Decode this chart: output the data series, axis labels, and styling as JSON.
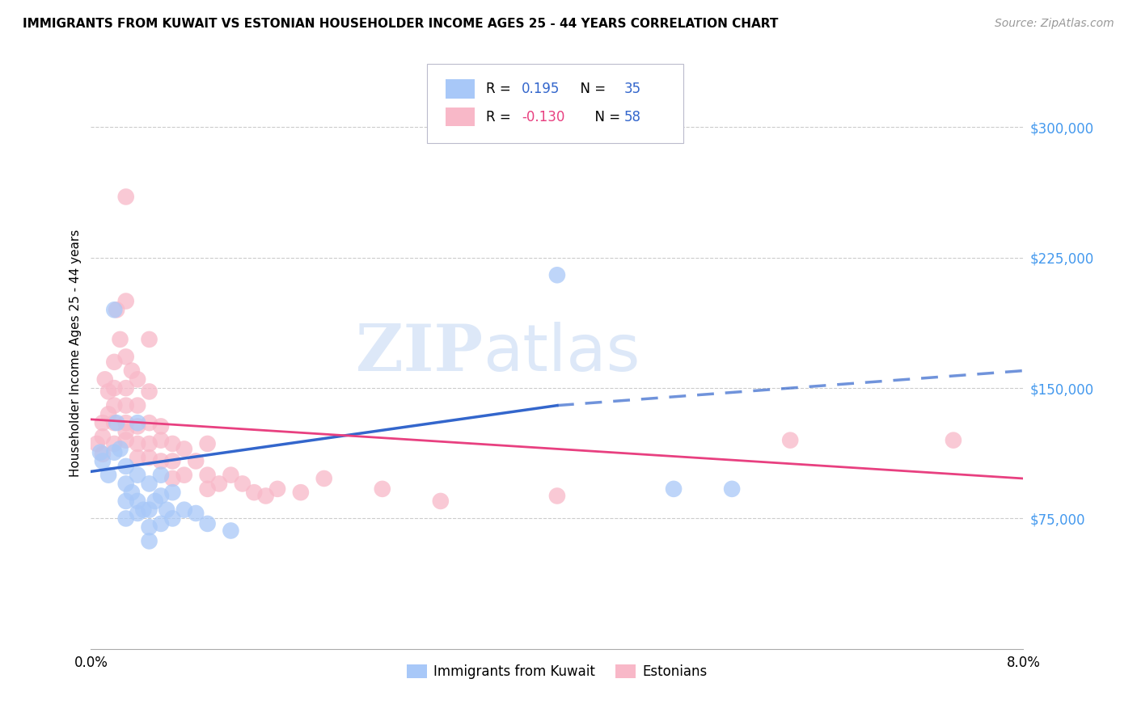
{
  "title": "IMMIGRANTS FROM KUWAIT VS ESTONIAN HOUSEHOLDER INCOME AGES 25 - 44 YEARS CORRELATION CHART",
  "source": "Source: ZipAtlas.com",
  "ylabel": "Householder Income Ages 25 - 44 years",
  "xlim": [
    0.0,
    0.08
  ],
  "ylim": [
    0,
    340000
  ],
  "yticks": [
    75000,
    150000,
    225000,
    300000
  ],
  "ytick_labels": [
    "$75,000",
    "$150,000",
    "$225,000",
    "$300,000"
  ],
  "xticks": [
    0.0,
    0.01,
    0.02,
    0.03,
    0.04,
    0.05,
    0.06,
    0.07,
    0.08
  ],
  "xtick_labels": [
    "0.0%",
    "",
    "",
    "",
    "",
    "",
    "",
    "",
    "8.0%"
  ],
  "color_kuwait": "#a8c8f8",
  "color_estonian": "#f8b8c8",
  "line_color_kuwait": "#3366cc",
  "line_color_estonian": "#e84080",
  "watermark_zip": "ZIP",
  "watermark_atlas": "atlas",
  "kuwait_scatter": [
    [
      0.0008,
      113000
    ],
    [
      0.001,
      108000
    ],
    [
      0.0015,
      100000
    ],
    [
      0.002,
      195000
    ],
    [
      0.002,
      113000
    ],
    [
      0.0022,
      130000
    ],
    [
      0.0025,
      115000
    ],
    [
      0.003,
      105000
    ],
    [
      0.003,
      95000
    ],
    [
      0.003,
      85000
    ],
    [
      0.003,
      75000
    ],
    [
      0.0035,
      90000
    ],
    [
      0.004,
      130000
    ],
    [
      0.004,
      100000
    ],
    [
      0.004,
      85000
    ],
    [
      0.004,
      78000
    ],
    [
      0.0045,
      80000
    ],
    [
      0.005,
      95000
    ],
    [
      0.005,
      80000
    ],
    [
      0.005,
      70000
    ],
    [
      0.005,
      62000
    ],
    [
      0.0055,
      85000
    ],
    [
      0.006,
      100000
    ],
    [
      0.006,
      88000
    ],
    [
      0.006,
      72000
    ],
    [
      0.0065,
      80000
    ],
    [
      0.007,
      90000
    ],
    [
      0.007,
      75000
    ],
    [
      0.008,
      80000
    ],
    [
      0.009,
      78000
    ],
    [
      0.01,
      72000
    ],
    [
      0.012,
      68000
    ],
    [
      0.04,
      215000
    ],
    [
      0.05,
      92000
    ],
    [
      0.055,
      92000
    ]
  ],
  "estonian_scatter": [
    [
      0.0005,
      118000
    ],
    [
      0.001,
      130000
    ],
    [
      0.001,
      122000
    ],
    [
      0.001,
      112000
    ],
    [
      0.0012,
      155000
    ],
    [
      0.0015,
      148000
    ],
    [
      0.0015,
      135000
    ],
    [
      0.002,
      165000
    ],
    [
      0.002,
      150000
    ],
    [
      0.002,
      140000
    ],
    [
      0.002,
      130000
    ],
    [
      0.002,
      118000
    ],
    [
      0.0022,
      195000
    ],
    [
      0.0025,
      178000
    ],
    [
      0.003,
      260000
    ],
    [
      0.003,
      200000
    ],
    [
      0.003,
      168000
    ],
    [
      0.003,
      150000
    ],
    [
      0.003,
      140000
    ],
    [
      0.003,
      130000
    ],
    [
      0.003,
      125000
    ],
    [
      0.003,
      120000
    ],
    [
      0.0035,
      160000
    ],
    [
      0.004,
      155000
    ],
    [
      0.004,
      140000
    ],
    [
      0.004,
      128000
    ],
    [
      0.004,
      118000
    ],
    [
      0.004,
      110000
    ],
    [
      0.005,
      178000
    ],
    [
      0.005,
      148000
    ],
    [
      0.005,
      130000
    ],
    [
      0.005,
      118000
    ],
    [
      0.005,
      110000
    ],
    [
      0.006,
      128000
    ],
    [
      0.006,
      120000
    ],
    [
      0.006,
      108000
    ],
    [
      0.007,
      118000
    ],
    [
      0.007,
      108000
    ],
    [
      0.007,
      98000
    ],
    [
      0.008,
      115000
    ],
    [
      0.008,
      100000
    ],
    [
      0.009,
      108000
    ],
    [
      0.01,
      118000
    ],
    [
      0.01,
      100000
    ],
    [
      0.01,
      92000
    ],
    [
      0.011,
      95000
    ],
    [
      0.012,
      100000
    ],
    [
      0.013,
      95000
    ],
    [
      0.014,
      90000
    ],
    [
      0.015,
      88000
    ],
    [
      0.016,
      92000
    ],
    [
      0.018,
      90000
    ],
    [
      0.02,
      98000
    ],
    [
      0.025,
      92000
    ],
    [
      0.03,
      85000
    ],
    [
      0.04,
      88000
    ],
    [
      0.06,
      120000
    ],
    [
      0.074,
      120000
    ]
  ],
  "estonian_large": [
    [
      0.0005,
      118000
    ]
  ],
  "kuwait_line": [
    [
      0.0,
      102000
    ],
    [
      0.04,
      140000
    ]
  ],
  "kuwait_line_dashed": [
    [
      0.04,
      140000
    ],
    [
      0.08,
      160000
    ]
  ],
  "estonian_line": [
    [
      0.0,
      132000
    ],
    [
      0.08,
      98000
    ]
  ]
}
